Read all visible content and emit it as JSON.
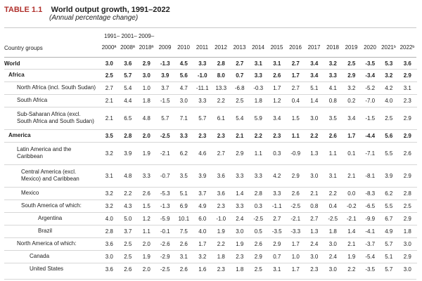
{
  "header": {
    "tag": "TABLE 1.1",
    "title": "World output growth, 1991–2022",
    "subtitle": "(Annual percentage change)"
  },
  "columns": {
    "group_label": "Country groups",
    "span_label": "1991– 2001– 2009–",
    "years": [
      "2000ª",
      "2008ª",
      "2018ª",
      "2009",
      "2010",
      "2011",
      "2012",
      "2013",
      "2014",
      "2015",
      "2016",
      "2017",
      "2018",
      "2019",
      "2020",
      "2021ᵇ",
      "2022ᵇ"
    ]
  },
  "rows": [
    {
      "label": "World",
      "values": [
        "3.0",
        "3.6",
        "2.9",
        "-1.3",
        "4.5",
        "3.3",
        "2.8",
        "2.7",
        "3.1",
        "3.1",
        "2.7",
        "3.4",
        "3.2",
        "2.5",
        "-3.5",
        "5.3",
        "3.6"
      ]
    },
    {
      "label": "Africa",
      "values": [
        "2.5",
        "5.7",
        "3.0",
        "3.9",
        "5.6",
        "-1.0",
        "8.0",
        "0.7",
        "3.3",
        "2.6",
        "1.7",
        "3.4",
        "3.3",
        "2.9",
        "-3.4",
        "3.2",
        "2.9"
      ]
    },
    {
      "label": "North Africa (incl. South Sudan)",
      "values": [
        "2.7",
        "5.4",
        "1.0",
        "3.7",
        "4.7",
        "-11.1",
        "13.3",
        "-6.8",
        "-0.3",
        "1.7",
        "2.7",
        "5.1",
        "4.1",
        "3.2",
        "-5.2",
        "4.2",
        "3.1"
      ]
    },
    {
      "label": "South Africa",
      "values": [
        "2.1",
        "4.4",
        "1.8",
        "-1.5",
        "3.0",
        "3.3",
        "2.2",
        "2.5",
        "1.8",
        "1.2",
        "0.4",
        "1.4",
        "0.8",
        "0.2",
        "-7.0",
        "4.0",
        "2.3"
      ]
    },
    {
      "label": "Sub-Saharan Africa (excl.\nSouth Africa and South Sudan)",
      "values": [
        "2.1",
        "6.5",
        "4.8",
        "5.7",
        "7.1",
        "5.7",
        "6.1",
        "5.4",
        "5.9",
        "3.4",
        "1.5",
        "3.0",
        "3.5",
        "3.4",
        "-1.5",
        "2.5",
        "2.9"
      ]
    },
    {
      "label": "America",
      "values": [
        "3.5",
        "2.8",
        "2.0",
        "-2.5",
        "3.3",
        "2.3",
        "2.3",
        "2.1",
        "2.2",
        "2.3",
        "1.1",
        "2.2",
        "2.6",
        "1.7",
        "-4.4",
        "5.6",
        "2.9"
      ]
    },
    {
      "label": "Latin America and the\nCaribbean",
      "values": [
        "3.2",
        "3.9",
        "1.9",
        "-2.1",
        "6.2",
        "4.6",
        "2.7",
        "2.9",
        "1.1",
        "0.3",
        "-0.9",
        "1.3",
        "1.1",
        "0.1",
        "-7.1",
        "5.5",
        "2.6"
      ]
    },
    {
      "label": "Central America (excl.\nMexico) and Caribbean",
      "values": [
        "3.1",
        "4.8",
        "3.3",
        "-0.7",
        "3.5",
        "3.9",
        "3.6",
        "3.3",
        "3.3",
        "4.2",
        "2.9",
        "3.0",
        "3.1",
        "2.1",
        "-8.1",
        "3.9",
        "2.9"
      ]
    },
    {
      "label": "Mexico",
      "values": [
        "3.2",
        "2.2",
        "2.6",
        "-5.3",
        "5.1",
        "3.7",
        "3.6",
        "1.4",
        "2.8",
        "3.3",
        "2.6",
        "2.1",
        "2.2",
        "0.0",
        "-8.3",
        "6.2",
        "2.8"
      ]
    },
    {
      "label": "South America of which:",
      "values": [
        "3.2",
        "4.3",
        "1.5",
        "-1.3",
        "6.9",
        "4.9",
        "2.3",
        "3.3",
        "0.3",
        "-1.1",
        "-2.5",
        "0.8",
        "0.4",
        "-0.2",
        "-6.5",
        "5.5",
        "2.5"
      ]
    },
    {
      "label": "Argentina",
      "values": [
        "4.0",
        "5.0",
        "1.2",
        "-5.9",
        "10.1",
        "6.0",
        "-1.0",
        "2.4",
        "-2.5",
        "2.7",
        "-2.1",
        "2.7",
        "-2.5",
        "-2.1",
        "-9.9",
        "6.7",
        "2.9"
      ]
    },
    {
      "label": "Brazil",
      "values": [
        "2.8",
        "3.7",
        "1.1",
        "-0.1",
        "7.5",
        "4.0",
        "1.9",
        "3.0",
        "0.5",
        "-3.5",
        "-3.3",
        "1.3",
        "1.8",
        "1.4",
        "-4.1",
        "4.9",
        "1.8"
      ]
    },
    {
      "label": "North America of which:",
      "values": [
        "3.6",
        "2.5",
        "2.0",
        "-2.6",
        "2.6",
        "1.7",
        "2.2",
        "1.9",
        "2.6",
        "2.9",
        "1.7",
        "2.4",
        "3.0",
        "2.1",
        "-3.7",
        "5.7",
        "3.0"
      ]
    },
    {
      "label": "Canada",
      "values": [
        "3.0",
        "2.5",
        "1.9",
        "-2.9",
        "3.1",
        "3.2",
        "1.8",
        "2.3",
        "2.9",
        "0.7",
        "1.0",
        "3.0",
        "2.4",
        "1.9",
        "-5.4",
        "5.1",
        "2.9"
      ]
    },
    {
      "label": "United States",
      "values": [
        "3.6",
        "2.6",
        "2.0",
        "-2.5",
        "2.6",
        "1.6",
        "2.3",
        "1.8",
        "2.5",
        "3.1",
        "1.7",
        "2.3",
        "3.0",
        "2.2",
        "-3.5",
        "5.7",
        "3.0"
      ]
    }
  ]
}
